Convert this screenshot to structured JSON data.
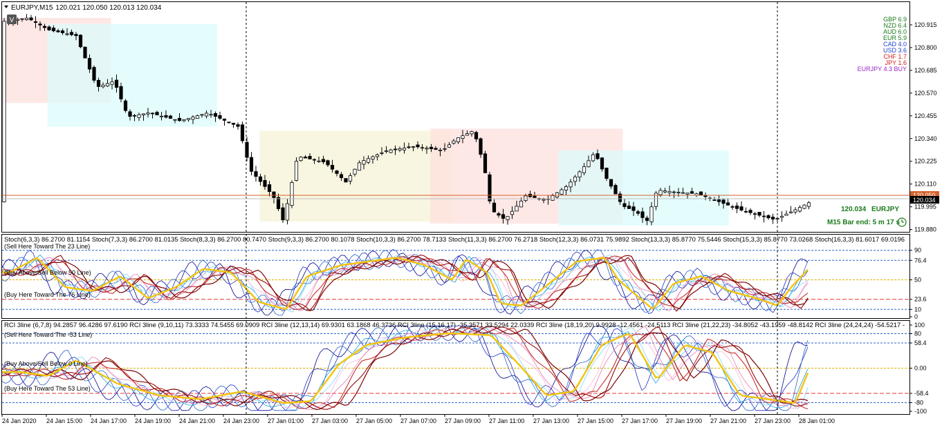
{
  "window": {
    "symbol": "EURJPY,M15",
    "quote": "120.021 120.050 120.013 120.034",
    "chart_type_label": "V"
  },
  "colors": {
    "bear_zone": "#fde0dd",
    "bull_zone": "#dcfbfb",
    "neutral_zone": "#f6f3d6",
    "line_price": "#d4622c",
    "gold": "#f2c512",
    "panel_border": "#000000"
  },
  "strength": [
    {
      "label": "GBP 6.9",
      "color": "#1a7a1a"
    },
    {
      "label": "NZD 6.4",
      "color": "#1a7a1a"
    },
    {
      "label": "AUD 6.0",
      "color": "#1a7a1a"
    },
    {
      "label": "EUR 5.9",
      "color": "#1a7a1a"
    },
    {
      "label": "CAD 4.0",
      "color": "#1c3fd0"
    },
    {
      "label": "USD 3.6",
      "color": "#1c3fd0"
    },
    {
      "label": "CHF 1.7",
      "color": "#d01c1c"
    },
    {
      "label": "JPY 1.6",
      "color": "#d01c1c"
    },
    {
      "label": "EURJPY 4.3 BUY",
      "color": "#9b25c9"
    }
  ],
  "info": {
    "price": "120.034",
    "pair": "EURJPY",
    "bar_end": "M15 Bar end: 5 m 17 s"
  },
  "price_axis": {
    "ticks": [
      "120.915",
      "120.800",
      "120.685",
      "120.570",
      "120.455",
      "120.340",
      "120.225",
      "120.110",
      "119.995",
      "119.880"
    ],
    "current_a": "120.050",
    "current_b": "120.034"
  },
  "stoch_panel": {
    "header": "Stoch(6,3,3) 86.2700 81.1154  Stoch(7,3,3) 86.2700 81.0135  Stoch(8,3,3) 86.2700 80.7470  Stoch(9,3,3) 86.2700 80.1078  Stoch(10,3,3) 86.2700 78.7133  Stoch(11,3,3) 86.2700 76.2718  Stoch(12,3,3) 86.0731 75.9892  Stoch(13,3,3) 85.8770 75.5446  Stoch(15,3,3) 85.8770 73.0268  Stoch(16,3,3) 81.6017 69.0196",
    "label_sell": "(Sell Here Toward The 23 Line)",
    "label_mid": "(Buy Above/Sell Below 50 Line)",
    "label_buy": "(Buy Here Toward The 76 Line)",
    "ticks": [
      "90",
      "76.4",
      "50",
      "23.6",
      "10",
      "0"
    ]
  },
  "rci_panel": {
    "header": "RCI 3line (6,7,8) 94.2857 96.4286 97.6190  RCI 3line (9,10,11) 73.3333 74.5455 69.0909  RCI 3line (12,13,14) 69.9301 63.1868 46.3736  RCI 3line (15,16,17) -35.3571 33.5294 22.0339  RCI 3line (18,19,20) 9.9928 -12.4561 -24.5113  RCI 3line (21,22,23) -34.8052 -43.1959 -48.8142  RCI 3line (24,24,24) -54.5217 -",
    "label_sell": "(Sell Here Toward The -53 Line)",
    "label_mid": "(Buy Above/Sell Below 0 Line)",
    "label_buy": "(Buy Here Toward The 53 Line)",
    "ticks": [
      "100",
      "80",
      "58.4",
      "0.00",
      "-58.4",
      "-80",
      "-100"
    ]
  },
  "time_axis": [
    "24 Jan 2020",
    "24 Jan 15:00",
    "24 Jan 17:00",
    "24 Jan 19:00",
    "24 Jan 21:00",
    "24 Jan 23:00",
    "27 Jan 01:00",
    "27 Jan 03:00",
    "27 Jan 05:00",
    "27 Jan 07:00",
    "27 Jan 09:00",
    "27 Jan 11:00",
    "27 Jan 13:00",
    "27 Jan 15:00",
    "27 Jan 17:00",
    "27 Jan 19:00",
    "27 Jan 21:00",
    "27 Jan 23:00",
    "28 Jan 01:00"
  ],
  "zones": [
    {
      "type": "bear",
      "x1": 0.0,
      "x2": 0.12,
      "y1": 120.95,
      "y2": 120.52
    },
    {
      "type": "bull",
      "x1": 0.05,
      "x2": 0.237,
      "y1": 120.92,
      "y2": 120.4
    },
    {
      "type": "neutral",
      "x1": 0.284,
      "x2": 0.495,
      "y1": 120.38,
      "y2": 119.92
    },
    {
      "type": "bear",
      "x1": 0.472,
      "x2": 0.684,
      "y1": 120.39,
      "y2": 119.91
    },
    {
      "type": "bull",
      "x1": 0.613,
      "x2": 0.801,
      "y1": 120.28,
      "y2": 119.9
    }
  ]
}
